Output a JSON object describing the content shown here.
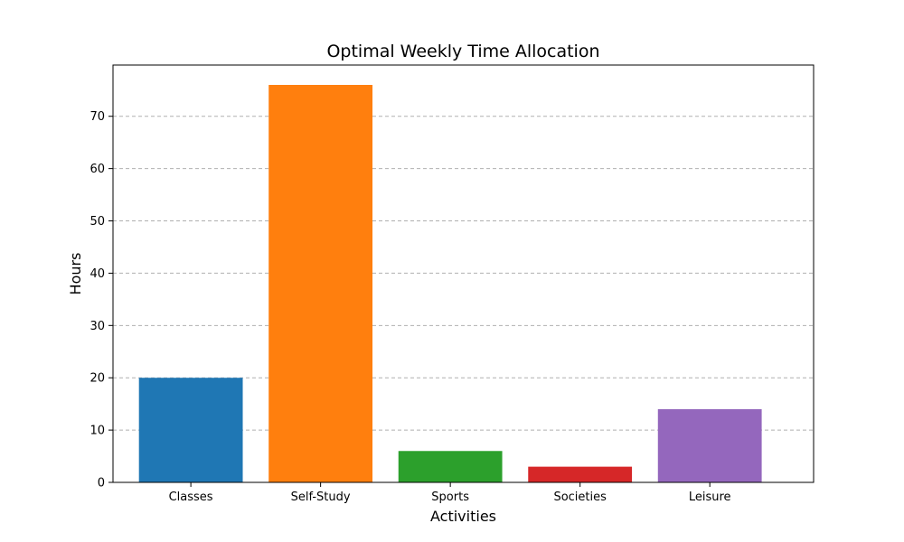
{
  "chart_data": {
    "type": "bar",
    "title": "Optimal Weekly Time Allocation",
    "xlabel": "Activities",
    "ylabel": "Hours",
    "categories": [
      "Classes",
      "Self-Study",
      "Sports",
      "Societies",
      "Leisure"
    ],
    "values": [
      20,
      76,
      6,
      3,
      14
    ],
    "colors": [
      "#1f77b4",
      "#ff7f0e",
      "#2ca02c",
      "#d62728",
      "#9467bd"
    ],
    "ylim": [
      0,
      79.8
    ],
    "yticks": [
      0,
      10,
      20,
      30,
      40,
      50,
      60,
      70
    ],
    "grid": "y-dashed",
    "legend": "none"
  }
}
